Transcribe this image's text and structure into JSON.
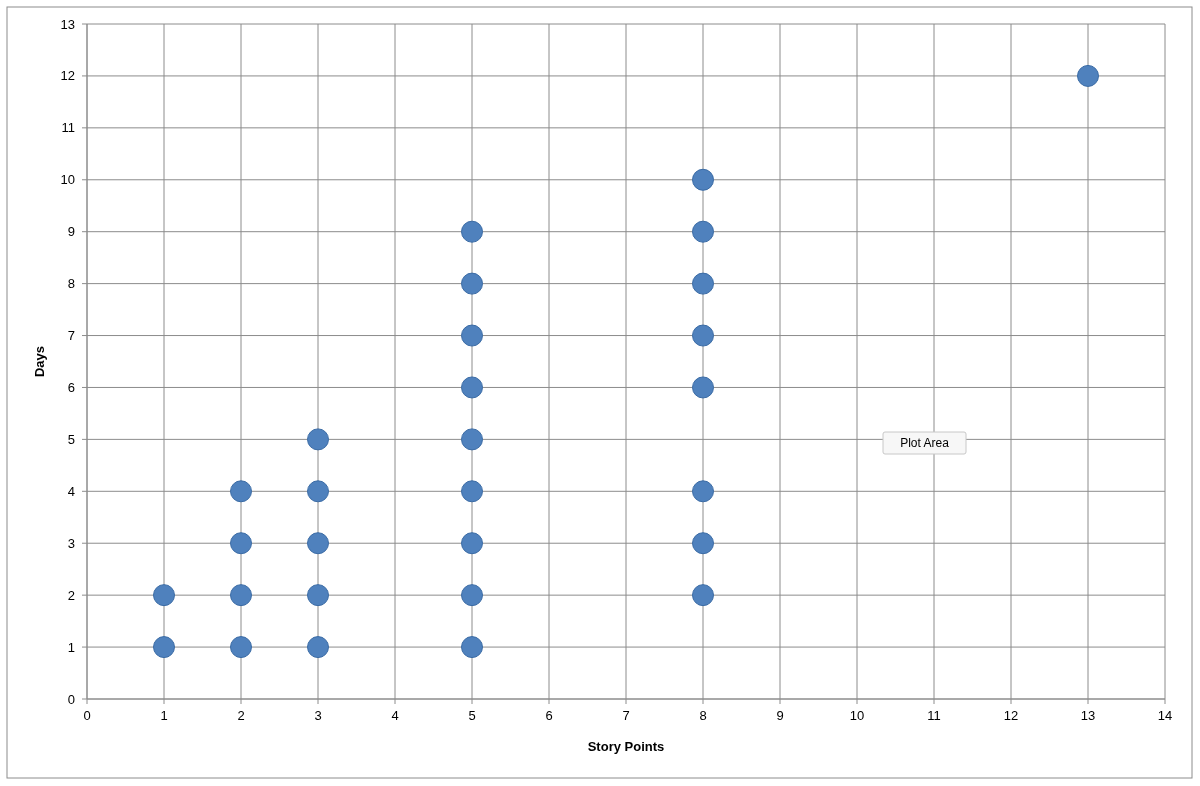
{
  "chart_data": {
    "type": "scatter",
    "xlabel": "Story Points",
    "ylabel": "Days",
    "x": [
      1,
      1,
      2,
      2,
      2,
      2,
      3,
      3,
      3,
      3,
      3,
      5,
      5,
      5,
      5,
      5,
      5,
      5,
      5,
      5,
      8,
      8,
      8,
      8,
      8,
      8,
      8,
      8,
      13
    ],
    "series": [
      {
        "color": "#4f81bd",
        "values": [
          1,
          2,
          1,
          2,
          3,
          4,
          1,
          2,
          3,
          4,
          5,
          1,
          2,
          3,
          4,
          5,
          6,
          7,
          8,
          9,
          2,
          3,
          4,
          6,
          7,
          8,
          9,
          10,
          12
        ]
      }
    ],
    "xlim": [
      0,
      14
    ],
    "xticks": [
      0,
      1,
      2,
      3,
      4,
      5,
      6,
      7,
      8,
      9,
      10,
      11,
      12,
      13,
      14
    ],
    "ylim": [
      0,
      13
    ],
    "yticks": [
      0,
      1,
      2,
      3,
      4,
      5,
      6,
      7,
      8,
      9,
      10,
      11,
      12,
      13
    ],
    "grid": true,
    "marker": "circle",
    "annotations": [
      "Plot Area"
    ]
  }
}
